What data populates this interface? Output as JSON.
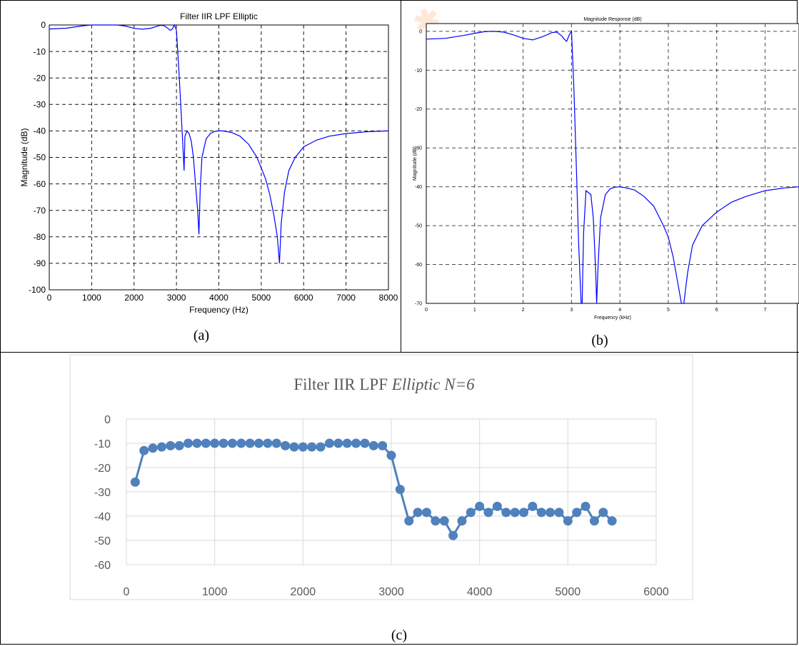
{
  "captions": {
    "a": "(a)",
    "b": "(b)",
    "c": "(c)"
  },
  "chart_data": [
    {
      "id": "a",
      "type": "line",
      "title": "Filter IIR LPF Elliptic",
      "xlabel": "Frequency (Hz)",
      "ylabel": "Magnitude (dB)",
      "xlim": [
        0,
        8000
      ],
      "ylim": [
        -100,
        0
      ],
      "xticks": [
        0,
        1000,
        2000,
        3000,
        4000,
        5000,
        6000,
        7000,
        8000
      ],
      "yticks": [
        0,
        -10,
        -20,
        -30,
        -40,
        -50,
        -60,
        -70,
        -80,
        -90,
        -100
      ],
      "grid": true,
      "color": "#0000ff",
      "x": [
        0,
        400,
        800,
        1000,
        1200,
        1400,
        1600,
        1800,
        2000,
        2200,
        2400,
        2600,
        2700,
        2800,
        2850,
        2900,
        2950,
        3000,
        3050,
        3100,
        3150,
        3180,
        3200,
        3250,
        3300,
        3350,
        3400,
        3450,
        3500,
        3530,
        3560,
        3600,
        3700,
        3800,
        3900,
        4000,
        4100,
        4300,
        4500,
        4700,
        4900,
        5100,
        5200,
        5300,
        5380,
        5430,
        5470,
        5550,
        5650,
        5800,
        6000,
        6300,
        6600,
        7000,
        7500,
        8000
      ],
      "y": [
        -1.5,
        -1.2,
        -0.3,
        0,
        0,
        0,
        0,
        -0.4,
        -1.3,
        -1.6,
        -1.2,
        -0.2,
        -0.2,
        -1.3,
        -2.0,
        -1.6,
        0,
        -2,
        -15,
        -30,
        -45,
        -55,
        -42,
        -40,
        -41,
        -44,
        -50,
        -60,
        -70,
        -79,
        -62,
        -50,
        -43,
        -41,
        -40.2,
        -40,
        -40,
        -40.6,
        -42,
        -45,
        -50,
        -58,
        -64,
        -72,
        -80,
        -90,
        -75,
        -63,
        -55,
        -50,
        -46,
        -43.5,
        -42,
        -41,
        -40.3,
        -40
      ]
    },
    {
      "id": "b",
      "type": "line",
      "title": "Magnitude Response (dB)",
      "xlabel": "Frequency (kHz)",
      "ylabel": "Magnitude (dB)",
      "xlim": [
        0,
        7.7
      ],
      "ylim": [
        -70,
        2
      ],
      "xticks": [
        0,
        1,
        2,
        3,
        4,
        5,
        6,
        7
      ],
      "yticks": [
        0,
        -10,
        -20,
        -30,
        -40,
        -50,
        -60,
        -70
      ],
      "grid": true,
      "color": "#0000ff",
      "x": [
        0,
        0.4,
        0.8,
        1.0,
        1.2,
        1.4,
        1.6,
        1.8,
        2.0,
        2.2,
        2.4,
        2.6,
        2.7,
        2.8,
        2.85,
        2.9,
        2.95,
        3.0,
        3.05,
        3.1,
        3.15,
        3.2,
        3.22,
        3.25,
        3.3,
        3.4,
        3.45,
        3.5,
        3.52,
        3.55,
        3.6,
        3.7,
        3.8,
        3.9,
        4.0,
        4.1,
        4.3,
        4.5,
        4.7,
        4.9,
        5.0,
        5.1,
        5.2,
        5.27,
        5.32,
        5.4,
        5.5,
        5.7,
        6.0,
        6.3,
        6.6,
        7.0,
        7.4,
        7.7
      ],
      "y": [
        -2,
        -1.8,
        -1.0,
        -0.5,
        -0.1,
        0,
        -0.2,
        -0.9,
        -1.8,
        -2.2,
        -1.4,
        -0.3,
        -0.2,
        -1.2,
        -2.0,
        -2.6,
        -1.0,
        0,
        -15,
        -35,
        -55,
        -70,
        -70,
        -52,
        -41,
        -42,
        -48,
        -62,
        -70,
        -60,
        -48,
        -42,
        -40.5,
        -40.1,
        -40,
        -40.2,
        -40.8,
        -42.5,
        -45,
        -50,
        -53,
        -58,
        -65,
        -70,
        -70,
        -62,
        -55,
        -50,
        -46.5,
        -44,
        -42.5,
        -41,
        -40.3,
        -40
      ]
    },
    {
      "id": "c",
      "type": "line",
      "title": "Filter IIR LPF Elliptic N=6",
      "title_plain": "Filter IIR LPF ",
      "title_italic": "Elliptic N=6",
      "xlim": [
        0,
        6000
      ],
      "ylim": [
        -60,
        0
      ],
      "xticks": [
        0,
        1000,
        2000,
        3000,
        4000,
        5000,
        6000
      ],
      "yticks": [
        0,
        -10,
        -20,
        -30,
        -40,
        -50,
        -60
      ],
      "grid": true,
      "color": "#4f81bd",
      "x": [
        100,
        200,
        300,
        400,
        500,
        600,
        700,
        800,
        900,
        1000,
        1100,
        1200,
        1300,
        1400,
        1500,
        1600,
        1700,
        1800,
        1900,
        2000,
        2100,
        2200,
        2300,
        2400,
        2500,
        2600,
        2700,
        2800,
        2900,
        3000,
        3100,
        3200,
        3300,
        3400,
        3500,
        3600,
        3700,
        3800,
        3900,
        4000,
        4100,
        4200,
        4300,
        4400,
        4500,
        4600,
        4700,
        4800,
        4900,
        5000,
        5100,
        5200,
        5300,
        5400,
        5500
      ],
      "y": [
        -26,
        -13,
        -12,
        -11.5,
        -11,
        -11,
        -10,
        -10,
        -10,
        -10,
        -10,
        -10,
        -10,
        -10,
        -10,
        -10,
        -10,
        -11,
        -11.5,
        -11.5,
        -11.5,
        -11.5,
        -10,
        -10,
        -10,
        -10,
        -10,
        -11,
        -11,
        -15,
        -29,
        -42,
        -38.5,
        -38.5,
        -42,
        -42,
        -48,
        -42,
        -38.5,
        -36,
        -38.5,
        -36,
        -38.5,
        -38.5,
        -38.5,
        -36,
        -38.5,
        -38.5,
        -38.5,
        -42,
        -38.5,
        -36,
        -42,
        -38.5,
        -42
      ]
    }
  ]
}
